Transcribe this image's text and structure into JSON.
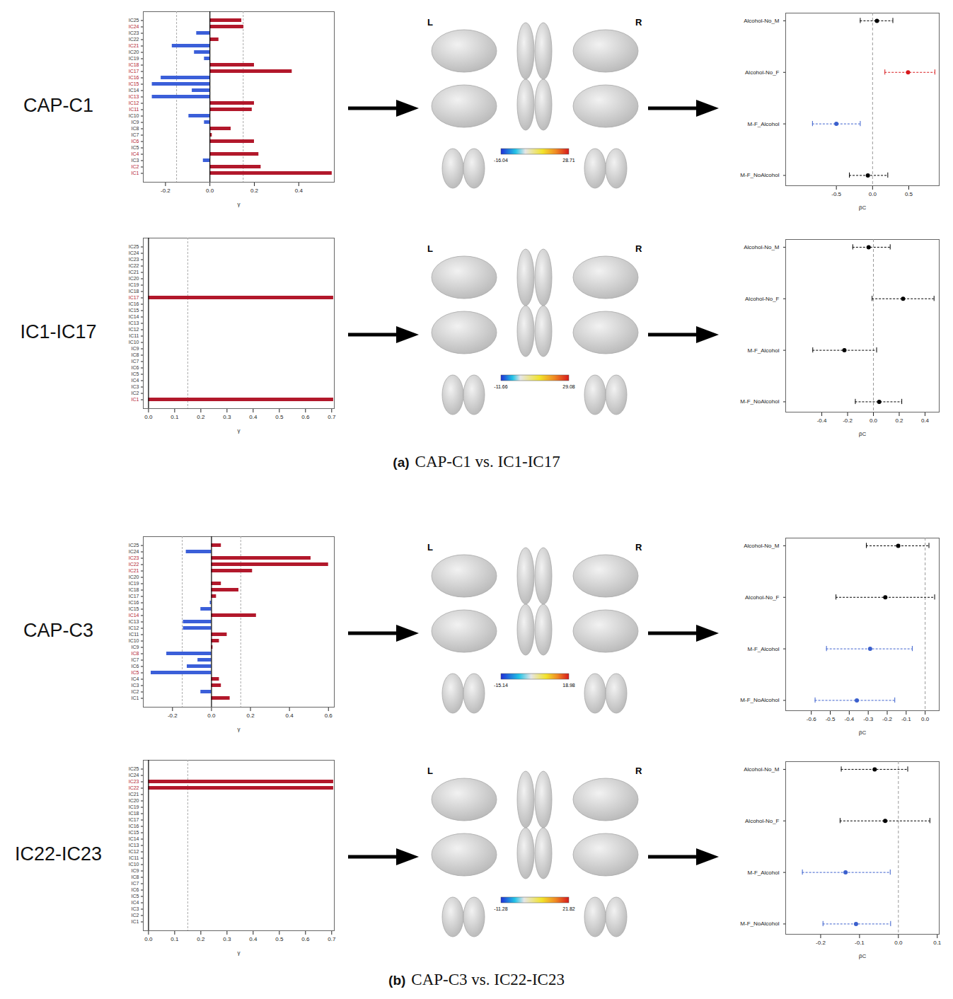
{
  "chart_data": [
    {
      "caption_letter": "(a)",
      "caption": "CAP-C1 vs. IC1-IC17",
      "rows": [
        {
          "label": "CAP-C1",
          "gamma_chart": {
            "type": "bar",
            "orientation": "horizontal",
            "categories": [
              "IC1",
              "IC2",
              "IC3",
              "IC4",
              "IC5",
              "IC6",
              "IC7",
              "IC8",
              "IC9",
              "IC10",
              "IC11",
              "IC12",
              "IC13",
              "IC14",
              "IC15",
              "IC16",
              "IC17",
              "IC18",
              "IC19",
              "IC20",
              "IC21",
              "IC22",
              "IC23",
              "IC24",
              "IC25"
            ],
            "values": [
              0.55,
              0.23,
              -0.03,
              0.22,
              0,
              0.2,
              0.01,
              0.095,
              -0.025,
              -0.095,
              0.19,
              0.2,
              -0.26,
              -0.08,
              -0.26,
              -0.22,
              0.37,
              0.2,
              -0.025,
              -0.07,
              -0.17,
              0.04,
              -0.06,
              0.152,
              0.143
            ],
            "colors": [
              "#b2182b",
              "#b2182b",
              "#3b5fd9",
              "#b2182b",
              "#b2182b",
              "#b2182b",
              "#b2182b",
              "#b2182b",
              "#3b5fd9",
              "#3b5fd9",
              "#b2182b",
              "#b2182b",
              "#3b5fd9",
              "#3b5fd9",
              "#3b5fd9",
              "#3b5fd9",
              "#b2182b",
              "#b2182b",
              "#3b5fd9",
              "#3b5fd9",
              "#3b5fd9",
              "#b2182b",
              "#3b5fd9",
              "#b2182b",
              "#b2182b"
            ],
            "label_colors": [
              "#b2182b",
              "#b2182b",
              "#333333",
              "#b2182b",
              "#333333",
              "#b2182b",
              "#333333",
              "#333333",
              "#333333",
              "#333333",
              "#b2182b",
              "#b2182b",
              "#b2182b",
              "#333333",
              "#b2182b",
              "#b2182b",
              "#b2182b",
              "#b2182b",
              "#333333",
              "#333333",
              "#b2182b",
              "#333333",
              "#333333",
              "#b2182b",
              "#333333"
            ],
            "xlim": [
              -0.3,
              0.56
            ],
            "xticks": [
              -0.2,
              {
                "value": 0,
                "label": "0.0"
              },
              0.2,
              0.4
            ],
            "x_label": "γ",
            "baseline": 0,
            "reference_lines": [
              -0.15,
              0.15
            ]
          },
          "brain_map": {
            "left_label": "L",
            "right_label": "R",
            "colorbar_range": [
              -16.04,
              28.71
            ]
          },
          "forest_chart": {
            "type": "forest",
            "categories": [
              "Alcohol-No_M",
              "Alcohol-No_F",
              "M-F_Alcohol",
              "M-F_NoAlcohol"
            ],
            "values": [
              0.06,
              0.49,
              -0.5,
              -0.065
            ],
            "ci_low": [
              -0.17,
              0.17,
              -0.83,
              -0.32
            ],
            "ci_high": [
              0.28,
              0.86,
              -0.17,
              0.21
            ],
            "colors": [
              "#000000",
              "#d7191c",
              "#3a5fcd",
              "#000000"
            ],
            "xlim": [
              -1.2,
              0.92
            ],
            "xticks": [
              -0.5,
              {
                "value": 0,
                "label": "0.0"
              },
              0.5
            ],
            "x_label": "βC",
            "reference_line": 0,
            "line_style": "dashed"
          }
        },
        {
          "label": "IC1-IC17",
          "gamma_chart": {
            "type": "bar",
            "orientation": "horizontal",
            "categories": [
              "IC1",
              "IC2",
              "IC3",
              "IC4",
              "IC5",
              "IC6",
              "IC7",
              "IC8",
              "IC9",
              "IC10",
              "IC11",
              "IC12",
              "IC13",
              "IC14",
              "IC15",
              "IC16",
              "IC17",
              "IC18",
              "IC19",
              "IC20",
              "IC21",
              "IC22",
              "IC23",
              "IC24",
              "IC25"
            ],
            "values": [
              0.7071,
              0,
              0,
              0,
              0,
              0,
              0,
              0,
              0,
              0,
              0,
              0,
              0,
              0,
              0,
              0,
              0.7071,
              0,
              0,
              0,
              0,
              0,
              0,
              0,
              0
            ],
            "colors": [
              "#b2182b",
              "#b2182b",
              "#b2182b",
              "#b2182b",
              "#b2182b",
              "#b2182b",
              "#b2182b",
              "#b2182b",
              "#b2182b",
              "#b2182b",
              "#b2182b",
              "#b2182b",
              "#b2182b",
              "#b2182b",
              "#b2182b",
              "#b2182b",
              "#b2182b",
              "#b2182b",
              "#b2182b",
              "#b2182b",
              "#b2182b",
              "#b2182b",
              "#b2182b",
              "#b2182b",
              "#b2182b"
            ],
            "label_colors": [
              "#b2182b",
              "#333333",
              "#333333",
              "#333333",
              "#333333",
              "#333333",
              "#333333",
              "#333333",
              "#333333",
              "#333333",
              "#333333",
              "#333333",
              "#333333",
              "#333333",
              "#333333",
              "#333333",
              "#b2182b",
              "#333333",
              "#333333",
              "#333333",
              "#333333",
              "#333333",
              "#333333",
              "#333333",
              "#333333"
            ],
            "xlim": [
              -0.02,
              0.71
            ],
            "xticks": [
              {
                "value": 0,
                "label": "0.0"
              },
              0.1,
              0.2,
              0.3,
              0.4,
              0.5,
              0.6,
              0.7
            ],
            "x_label": "γ",
            "baseline": 0,
            "reference_lines": [
              0.15
            ]
          },
          "brain_map": {
            "left_label": "L",
            "right_label": "R",
            "colorbar_range": [
              -11.66,
              29.08
            ]
          },
          "forest_chart": {
            "type": "forest",
            "categories": [
              "Alcohol-No_M",
              "Alcohol-No_F",
              "M-F_Alcohol",
              "M-F_NoAlcohol"
            ],
            "values": [
              -0.037,
              0.23,
              -0.225,
              0.045
            ],
            "ci_low": [
              -0.16,
              -0.01,
              -0.47,
              -0.14
            ],
            "ci_high": [
              0.13,
              0.47,
              0.025,
              0.22
            ],
            "colors": [
              "#000000",
              "#000000",
              "#000000",
              "#000000"
            ],
            "xlim": [
              -0.68,
              0.51
            ],
            "xticks": [
              -0.4,
              -0.2,
              {
                "value": 0,
                "label": "0.0"
              },
              0.2,
              0.4
            ],
            "x_label": "βC",
            "reference_line": 0,
            "line_style": "dashed"
          }
        }
      ]
    },
    {
      "caption_letter": "(b)",
      "caption": "CAP-C3 vs. IC22-IC23",
      "rows": [
        {
          "label": "CAP-C3",
          "gamma_chart": {
            "type": "bar",
            "orientation": "horizontal",
            "categories": [
              "IC1",
              "IC2",
              "IC3",
              "IC4",
              "IC5",
              "IC6",
              "IC7",
              "IC8",
              "IC9",
              "IC10",
              "IC11",
              "IC12",
              "IC13",
              "IC14",
              "IC15",
              "IC16",
              "IC17",
              "IC18",
              "IC19",
              "IC20",
              "IC21",
              "IC22",
              "IC23",
              "IC24",
              "IC25"
            ],
            "values": [
              0.095,
              -0.055,
              0.05,
              0.04,
              -0.31,
              -0.125,
              -0.07,
              -0.23,
              0.007,
              0.04,
              0.08,
              -0.145,
              -0.145,
              0.23,
              -0.055,
              -0.007,
              0.025,
              0.14,
              0.05,
              0,
              0.21,
              0.6,
              0.51,
              -0.13,
              0.05
            ],
            "colors": [
              "#b2182b",
              "#3b5fd9",
              "#b2182b",
              "#b2182b",
              "#3b5fd9",
              "#3b5fd9",
              "#3b5fd9",
              "#3b5fd9",
              "#b2182b",
              "#b2182b",
              "#b2182b",
              "#3b5fd9",
              "#3b5fd9",
              "#b2182b",
              "#3b5fd9",
              "#3b5fd9",
              "#b2182b",
              "#b2182b",
              "#b2182b",
              "#b2182b",
              "#b2182b",
              "#b2182b",
              "#b2182b",
              "#3b5fd9",
              "#b2182b"
            ],
            "label_colors": [
              "#333333",
              "#333333",
              "#333333",
              "#333333",
              "#b2182b",
              "#333333",
              "#333333",
              "#b2182b",
              "#333333",
              "#333333",
              "#333333",
              "#333333",
              "#333333",
              "#b2182b",
              "#333333",
              "#333333",
              "#333333",
              "#333333",
              "#333333",
              "#333333",
              "#b2182b",
              "#b2182b",
              "#b2182b",
              "#333333",
              "#333333"
            ],
            "xlim": [
              -0.35,
              0.63
            ],
            "xticks": [
              -0.2,
              {
                "value": 0,
                "label": "0.0"
              },
              0.2,
              0.4,
              0.6
            ],
            "x_label": "γ",
            "baseline": 0,
            "reference_lines": [
              -0.15,
              0.15
            ]
          },
          "brain_map": {
            "left_label": "L",
            "right_label": "R",
            "colorbar_range": [
              -15.14,
              18.98
            ]
          },
          "forest_chart": {
            "type": "forest",
            "categories": [
              "Alcohol-No_M",
              "Alcohol-No_F",
              "M-F_Alcohol",
              "M-F_NoAlcohol"
            ],
            "values": [
              -0.142,
              -0.21,
              -0.29,
              -0.36
            ],
            "ci_low": [
              -0.31,
              -0.47,
              -0.52,
              -0.58
            ],
            "ci_high": [
              0.02,
              0.05,
              -0.068,
              -0.16
            ],
            "colors": [
              "#000000",
              "#000000",
              "#3a5fcd",
              "#3a5fcd"
            ],
            "xlim": [
              -0.735,
              0.074
            ],
            "xticks": [
              -0.6,
              -0.5,
              -0.4,
              -0.3,
              -0.2,
              -0.1,
              {
                "value": 0,
                "label": "0.0"
              }
            ],
            "x_label": "βC",
            "reference_line": 0,
            "line_style": "dashed"
          }
        },
        {
          "label": "IC22-IC23",
          "gamma_chart": {
            "type": "bar",
            "orientation": "horizontal",
            "categories": [
              "IC1",
              "IC2",
              "IC3",
              "IC4",
              "IC5",
              "IC6",
              "IC7",
              "IC8",
              "IC9",
              "IC10",
              "IC11",
              "IC12",
              "IC13",
              "IC14",
              "IC15",
              "IC16",
              "IC17",
              "IC18",
              "IC19",
              "IC20",
              "IC21",
              "IC22",
              "IC23",
              "IC24",
              "IC25"
            ],
            "values": [
              0,
              0,
              0,
              0,
              0,
              0,
              0,
              0,
              0,
              0,
              0,
              0,
              0,
              0,
              0,
              0,
              0,
              0,
              0,
              0,
              0,
              0.7071,
              0.7071,
              0,
              0
            ],
            "colors": [
              "#b2182b",
              "#b2182b",
              "#b2182b",
              "#b2182b",
              "#b2182b",
              "#b2182b",
              "#b2182b",
              "#b2182b",
              "#b2182b",
              "#b2182b",
              "#b2182b",
              "#b2182b",
              "#b2182b",
              "#b2182b",
              "#b2182b",
              "#b2182b",
              "#b2182b",
              "#b2182b",
              "#b2182b",
              "#b2182b",
              "#b2182b",
              "#b2182b",
              "#b2182b",
              "#b2182b",
              "#b2182b"
            ],
            "label_colors": [
              "#333333",
              "#333333",
              "#333333",
              "#333333",
              "#333333",
              "#333333",
              "#333333",
              "#333333",
              "#333333",
              "#333333",
              "#333333",
              "#333333",
              "#333333",
              "#333333",
              "#333333",
              "#333333",
              "#333333",
              "#333333",
              "#333333",
              "#333333",
              "#333333",
              "#b2182b",
              "#b2182b",
              "#333333",
              "#333333"
            ],
            "xlim": [
              -0.02,
              0.71
            ],
            "xticks": [
              {
                "value": 0,
                "label": "0.0"
              },
              0.1,
              0.2,
              0.3,
              0.4,
              0.5,
              0.6,
              0.7
            ],
            "x_label": "γ",
            "baseline": 0,
            "reference_lines": [
              0.15
            ]
          },
          "brain_map": {
            "left_label": "L",
            "right_label": "R",
            "colorbar_range": [
              -11.28,
              21.82
            ]
          },
          "forest_chart": {
            "type": "forest",
            "categories": [
              "Alcohol-No_M",
              "Alcohol-No_F",
              "M-F_Alcohol",
              "M-F_NoAlcohol"
            ],
            "values": [
              -0.061,
              -0.034,
              -0.136,
              -0.109
            ],
            "ci_low": [
              -0.147,
              -0.15,
              -0.247,
              -0.194
            ],
            "ci_high": [
              0.024,
              0.081,
              -0.021,
              -0.02
            ],
            "colors": [
              "#000000",
              "#000000",
              "#3a5fcd",
              "#3a5fcd"
            ],
            "xlim": [
              -0.29,
              0.105
            ],
            "xticks": [
              -0.2,
              -0.1,
              {
                "value": 0,
                "label": "0.0"
              },
              0.1
            ],
            "x_label": "βC",
            "reference_line": 0,
            "line_style": "dashed"
          }
        }
      ]
    }
  ]
}
